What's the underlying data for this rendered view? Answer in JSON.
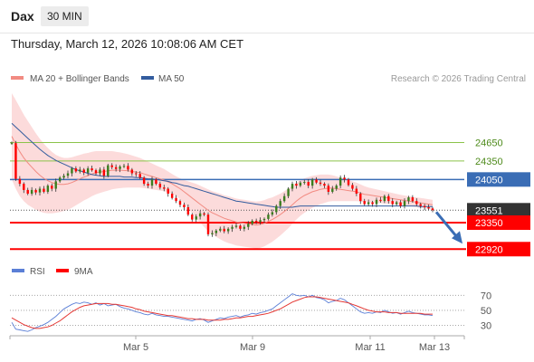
{
  "header": {
    "instrument": "Dax",
    "timeframe": "30 MIN",
    "datetime": "Thursday, March 12, 2026 10:08:06 AM CET"
  },
  "legend": {
    "ma20_label": "MA 20 + Bollinger Bands",
    "ma50_label": "MA 50",
    "credit": "Research © 2026 Trading Central"
  },
  "rsi_legend": {
    "rsi_label": "RSI",
    "ma9_label": "9MA"
  },
  "colors": {
    "bullish": "#3a7d1e",
    "bearish": "#ff0000",
    "current": "#333333",
    "ma20": "#f28b82",
    "ma50": "#335c9e",
    "bands": "#fbd5d5",
    "arrow": "#3a6db5"
  },
  "chart_data": [
    {
      "type": "candlestick",
      "ylim": [
        22880,
        25200
      ],
      "x_ticks": [
        "Mar 5",
        "Mar 9",
        "Mar 11",
        "Mar 13"
      ],
      "levels": [
        {
          "value": 24650,
          "label": "24650",
          "kind": "resistance"
        },
        {
          "value": 24350,
          "label": "24350",
          "kind": "resistance"
        },
        {
          "value": 24050,
          "label": "24050",
          "kind": "pivot"
        },
        {
          "value": 23551,
          "label": "23551",
          "kind": "current"
        },
        {
          "value": 23350,
          "label": "23350",
          "kind": "support"
        },
        {
          "value": 22920,
          "label": "22920",
          "kind": "support"
        }
      ],
      "close": [
        24640,
        24060,
        23980,
        23880,
        23820,
        23880,
        23840,
        23900,
        23850,
        23950,
        23900,
        24020,
        24080,
        24110,
        24150,
        24230,
        24180,
        24210,
        24160,
        24230,
        24200,
        24150,
        24210,
        24110,
        24280,
        24250,
        24220,
        24260,
        24270,
        24210,
        24150,
        24140,
        24080,
        23980,
        23950,
        24050,
        23980,
        23920,
        23900,
        23820,
        23750,
        23700,
        23640,
        23600,
        23480,
        23400,
        23450,
        23500,
        23480,
        23160,
        23180,
        23220,
        23250,
        23210,
        23250,
        23280,
        23300,
        23250,
        23280,
        23330,
        23380,
        23360,
        23390,
        23410,
        23480,
        23520,
        23620,
        23700,
        23780,
        23900,
        23980,
        23950,
        24000,
        24010,
        23950,
        24050,
        24000,
        23980,
        23950,
        23850,
        23900,
        23950,
        24080,
        24050,
        23960,
        23900,
        23820,
        23700,
        23650,
        23680,
        23650,
        23720,
        23700,
        23780,
        23700,
        23650,
        23680,
        23620,
        23700,
        23760,
        23700,
        23650,
        23620,
        23600,
        23580,
        23551
      ],
      "ma20": [
        24750,
        24620,
        24500,
        24400,
        24320,
        24250,
        24180,
        24120,
        24070,
        24030,
        24000,
        23980,
        23970,
        23970,
        23980,
        24000,
        24030,
        24060,
        24090,
        24110,
        24140,
        24160,
        24170,
        24180,
        24190,
        24200,
        24200,
        24200,
        24195,
        24190,
        24180,
        24170,
        24160,
        24140,
        24120,
        24100,
        24080,
        24060,
        24040,
        24010,
        23980,
        23940,
        23900,
        23850,
        23800,
        23750,
        23700,
        23650,
        23600,
        23550,
        23510,
        23480,
        23450,
        23420,
        23400,
        23380,
        23360,
        23350,
        23340,
        23330,
        23320,
        23310,
        23320,
        23340,
        23370,
        23400,
        23440,
        23480,
        23530,
        23580,
        23640,
        23700,
        23750,
        23790,
        23820,
        23850,
        23870,
        23890,
        23900,
        23910,
        23910,
        23900,
        23890,
        23880,
        23870,
        23860,
        23850,
        23830,
        23810,
        23800,
        23790,
        23780,
        23770,
        23760,
        23750,
        23740,
        23730,
        23720,
        23710,
        23700,
        23690,
        23680,
        23670,
        23660,
        23650,
        23640
      ],
      "ma50": [
        24960,
        24900,
        24840,
        24780,
        24720,
        24660,
        24600,
        24540,
        24490,
        24440,
        24400,
        24360,
        24330,
        24300,
        24270,
        24240,
        24210,
        24190,
        24170,
        24150,
        24130,
        24120,
        24110,
        24100,
        24100,
        24100,
        24100,
        24100,
        24090,
        24090,
        24090,
        24080,
        24080,
        24070,
        24060,
        24060,
        24050,
        24040,
        24030,
        24020,
        24000,
        23990,
        23970,
        23950,
        23940,
        23920,
        23900,
        23880,
        23860,
        23840,
        23820,
        23800,
        23780,
        23760,
        23740,
        23720,
        23700,
        23690,
        23680,
        23670,
        23660,
        23650,
        23640,
        23630,
        23620,
        23610,
        23600,
        23600,
        23600,
        23600,
        23600,
        23610,
        23620,
        23620,
        23620,
        23620,
        23620,
        23620,
        23620,
        23620,
        23620,
        23620,
        23620,
        23620,
        23620,
        23620,
        23620,
        23620,
        23620,
        23620,
        23620,
        23620,
        23620,
        23620,
        23620,
        23620,
        23620,
        23620,
        23620,
        23620,
        23620,
        23620,
        23610,
        23610,
        23610,
        23610
      ],
      "band_halfwidth": [
        700,
        720,
        720,
        700,
        680,
        650,
        620,
        590,
        560,
        530,
        500,
        470,
        450,
        430,
        420,
        410,
        400,
        390,
        380,
        370,
        360,
        350,
        340,
        330,
        320,
        310,
        300,
        290,
        280,
        270,
        260,
        250,
        240,
        230,
        220,
        210,
        200,
        190,
        180,
        170,
        160,
        160,
        170,
        190,
        220,
        250,
        280,
        300,
        320,
        340,
        350,
        360,
        370,
        375,
        380,
        380,
        380,
        380,
        380,
        380,
        380,
        380,
        380,
        375,
        370,
        360,
        350,
        340,
        330,
        320,
        310,
        300,
        290,
        280,
        270,
        260,
        250,
        240,
        230,
        220,
        210,
        200,
        190,
        180,
        170,
        160,
        150,
        140,
        130,
        120,
        115,
        110,
        105,
        100,
        95,
        90,
        85,
        80,
        80,
        80,
        80,
        80,
        80,
        80,
        80,
        80
      ]
    },
    {
      "type": "line",
      "name": "RSI",
      "ylim": [
        15,
        80
      ],
      "y_ticks": [
        70,
        50,
        30
      ],
      "rsi": [
        34,
        25,
        24,
        23,
        22,
        24,
        27,
        29,
        31,
        34,
        38,
        42,
        47,
        52,
        55,
        58,
        60,
        59,
        61,
        60,
        58,
        60,
        57,
        59,
        56,
        57,
        58,
        55,
        53,
        52,
        50,
        48,
        47,
        45,
        44,
        46,
        44,
        43,
        42,
        42,
        41,
        40,
        39,
        38,
        37,
        36,
        38,
        39,
        37,
        34,
        36,
        38,
        40,
        39,
        41,
        42,
        43,
        41,
        43,
        44,
        46,
        45,
        47,
        48,
        50,
        52,
        56,
        60,
        64,
        68,
        72,
        70,
        69,
        70,
        68,
        70,
        67,
        66,
        64,
        60,
        62,
        63,
        66,
        64,
        60,
        56,
        52,
        48,
        46,
        47,
        46,
        48,
        47,
        50,
        48,
        46,
        47,
        45,
        47,
        49,
        47,
        46,
        45,
        44,
        44,
        43
      ],
      "ma9": [
        40,
        37,
        34,
        31,
        29,
        27,
        26,
        26,
        27,
        28,
        30,
        33,
        36,
        40,
        44,
        48,
        51,
        54,
        56,
        57,
        58,
        59,
        59,
        59,
        59,
        58,
        58,
        57,
        56,
        55,
        54,
        52,
        51,
        49,
        48,
        47,
        46,
        45,
        44,
        43,
        43,
        42,
        41,
        40,
        39,
        39,
        38,
        38,
        38,
        37,
        37,
        37,
        37,
        38,
        38,
        39,
        40,
        40,
        41,
        42,
        42,
        43,
        44,
        45,
        46,
        48,
        50,
        52,
        55,
        58,
        61,
        63,
        65,
        67,
        68,
        68,
        68,
        67,
        66,
        65,
        64,
        63,
        62,
        61,
        60,
        58,
        56,
        54,
        52,
        50,
        49,
        48,
        48,
        48,
        47,
        47,
        47,
        46,
        46,
        46,
        46,
        46,
        46,
        45,
        45,
        45
      ]
    }
  ]
}
